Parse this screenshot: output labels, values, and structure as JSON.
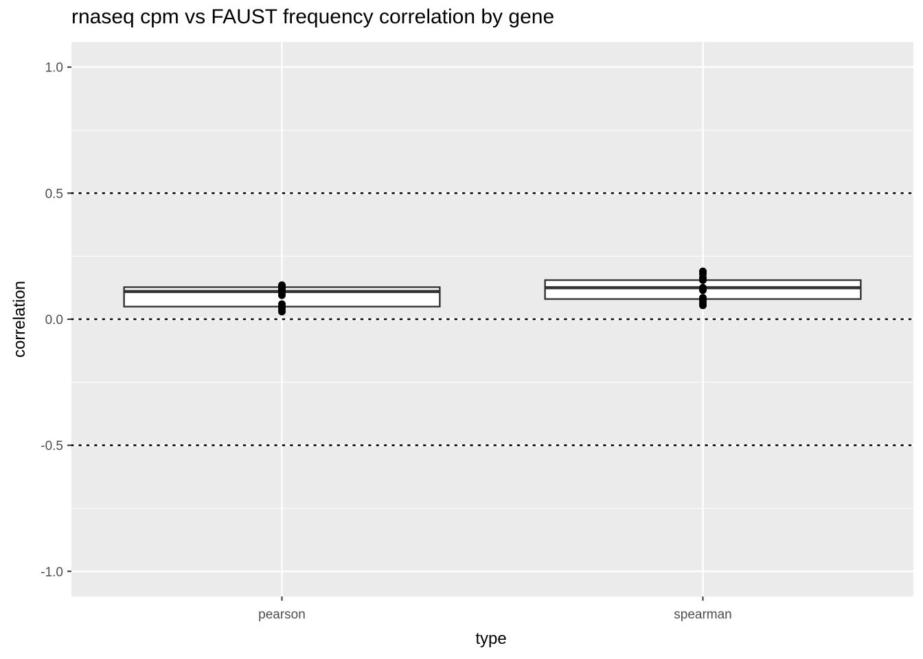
{
  "chart_data": {
    "type": "boxplot",
    "title": "rnaseq cpm vs FAUST frequency correlation by gene",
    "xlabel": "type",
    "ylabel": "correlation",
    "ylim": [
      -1.1,
      1.1
    ],
    "y_ticks": [
      {
        "value": -1.0,
        "label": "-1.0"
      },
      {
        "value": -0.5,
        "label": "-0.5"
      },
      {
        "value": 0.0,
        "label": "0.0"
      },
      {
        "value": 0.5,
        "label": "0.5"
      },
      {
        "value": 1.0,
        "label": "1.0"
      }
    ],
    "reference_lines": [
      -0.5,
      0.0,
      0.5
    ],
    "grid": true,
    "categories": [
      "pearson",
      "spearman"
    ],
    "boxes": [
      {
        "category": "pearson",
        "q1": 0.05,
        "median": 0.11,
        "q3": 0.127,
        "points": [
          0.03,
          0.04,
          0.05,
          0.06,
          0.095,
          0.105,
          0.115,
          0.12,
          0.13,
          0.135
        ]
      },
      {
        "category": "spearman",
        "q1": 0.08,
        "median": 0.125,
        "q3": 0.155,
        "points": [
          0.055,
          0.065,
          0.075,
          0.085,
          0.115,
          0.125,
          0.155,
          0.165,
          0.18,
          0.19
        ]
      }
    ],
    "colors": {
      "panel": "#ebebeb",
      "grid": "#ffffff",
      "box_fill": "#ffffff",
      "box_stroke": "#333333",
      "points": "#000000",
      "reference_line": "#000000",
      "tick_text": "#4d4d4d"
    }
  }
}
